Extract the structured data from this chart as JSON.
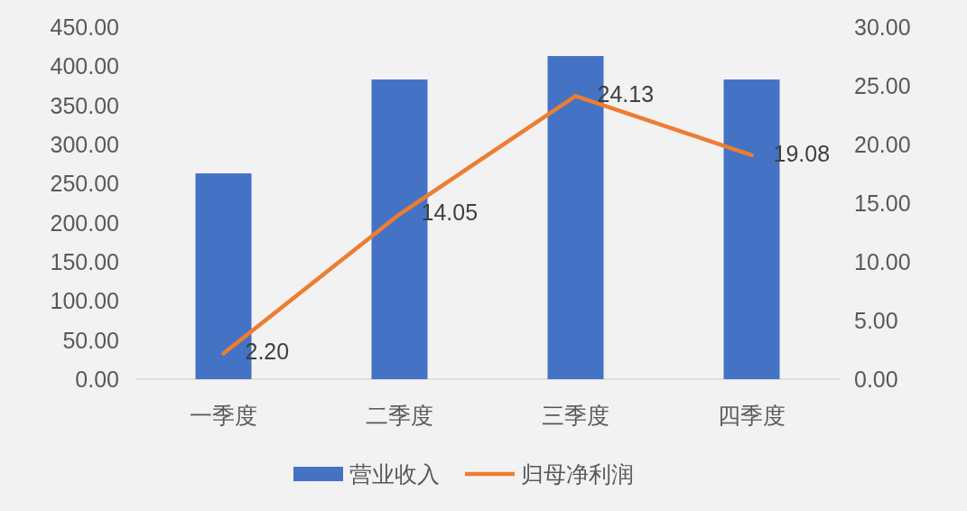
{
  "chart_data": {
    "type": "bar",
    "categories": [
      "一季度",
      "二季度",
      "三季度",
      "四季度"
    ],
    "series": [
      {
        "name": "营业收入",
        "color": "#4472c4",
        "values": [
          263,
          383,
          413,
          383
        ]
      },
      {
        "name": "归母净利润",
        "type": "line",
        "axis": "y2",
        "color": "#ed7d31",
        "values": [
          2.2,
          14.05,
          24.13,
          19.08
        ],
        "value_labels": [
          "2.20",
          "14.05",
          "24.13",
          "19.08"
        ]
      }
    ],
    "ylim": [
      0,
      450
    ],
    "yticks": [
      {
        "value": 0,
        "label": "0.00"
      },
      {
        "value": 50,
        "label": "50.00"
      },
      {
        "value": 100,
        "label": "100.00"
      },
      {
        "value": 150,
        "label": "150.00"
      },
      {
        "value": 200,
        "label": "200.00"
      },
      {
        "value": 250,
        "label": "250.00"
      },
      {
        "value": 300,
        "label": "300.00"
      },
      {
        "value": 350,
        "label": "350.00"
      },
      {
        "value": 400,
        "label": "400.00"
      },
      {
        "value": 450,
        "label": "450.00"
      }
    ],
    "y2lim": [
      0,
      30
    ],
    "y2ticks": [
      {
        "value": 0,
        "label": "0.00"
      },
      {
        "value": 5,
        "label": "5.00"
      },
      {
        "value": 10,
        "label": "10.00"
      },
      {
        "value": 15,
        "label": "15.00"
      },
      {
        "value": 20,
        "label": "20.00"
      },
      {
        "value": 25,
        "label": "25.00"
      },
      {
        "value": 30,
        "label": "30.00"
      }
    ],
    "grid": false,
    "legend": "bottom",
    "marker": "none"
  }
}
